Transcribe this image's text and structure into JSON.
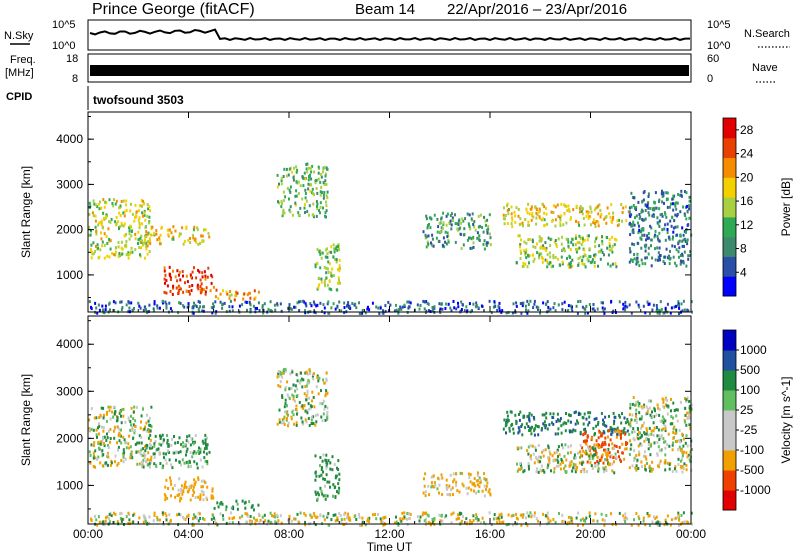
{
  "header": {
    "title": "Prince George (fitACF)",
    "beam": "Beam 14",
    "date_range": "22/Apr/2016 – 23/Apr/2016"
  },
  "strip_panels": {
    "sky": {
      "left_label": "N.Sky",
      "right_label": "N.Search",
      "tick_top": "10^5",
      "tick_bottom": "10^0"
    },
    "freq": {
      "left_label_top": "Freq.",
      "left_label_bottom": "[MHz]",
      "left_tick_top": "18",
      "left_tick_bottom": "8",
      "right_label": "Nave",
      "right_tick_top": "60",
      "right_tick_bottom": "0"
    },
    "cpid": {
      "label": "CPID",
      "value": "twofsound 3503"
    }
  },
  "colors": {
    "power_scale": [
      "#0000ff",
      "#2a4fa8",
      "#3b8a6e",
      "#2eaa55",
      "#a8d040",
      "#f5d000",
      "#f58c00",
      "#e84000",
      "#e00000"
    ],
    "velocity_scale": [
      "#e00000",
      "#f04000",
      "#f0a000",
      "#c8c8c8",
      "#c8c8c8",
      "#60c060",
      "#208a40",
      "#2050a0",
      "#0000c0"
    ]
  },
  "chart_data": [
    {
      "type": "heatmap",
      "name": "power",
      "title": "",
      "xlabel": "",
      "ylabel": "Slant Range [km]",
      "x_ticks": [
        "00:00",
        "04:00",
        "08:00",
        "12:00",
        "16:00",
        "20:00",
        "00:00"
      ],
      "x_range_hours": [
        0,
        24
      ],
      "y_ticks": [
        1000,
        2000,
        3000,
        4000
      ],
      "ylim": [
        180,
        4600
      ],
      "colorbar": {
        "label": "Power [dB]",
        "ticks": [
          4,
          8,
          12,
          16,
          20,
          24,
          28
        ],
        "range": [
          0,
          30
        ]
      },
      "echo_regions": [
        {
          "t": [
            0.0,
            2.5
          ],
          "range_km": [
            1400,
            2700
          ],
          "value": 16
        },
        {
          "t": [
            2.0,
            4.8
          ],
          "range_km": [
            1700,
            2100
          ],
          "value": 18
        },
        {
          "t": [
            3.0,
            5.0
          ],
          "range_km": [
            600,
            1200
          ],
          "value": 26
        },
        {
          "t": [
            5.0,
            6.8
          ],
          "range_km": [
            480,
            700
          ],
          "value": 20
        },
        {
          "t": [
            7.5,
            9.5
          ],
          "range_km": [
            2300,
            3500
          ],
          "value": 12
        },
        {
          "t": [
            9.0,
            10.0
          ],
          "range_km": [
            700,
            1700
          ],
          "value": 14
        },
        {
          "t": [
            13.3,
            16.0
          ],
          "range_km": [
            1600,
            2400
          ],
          "value": 10
        },
        {
          "t": [
            16.5,
            21.5
          ],
          "range_km": [
            2100,
            2600
          ],
          "value": 18
        },
        {
          "t": [
            17.0,
            21.0
          ],
          "range_km": [
            1200,
            1900
          ],
          "value": 14
        },
        {
          "t": [
            21.5,
            24.0
          ],
          "range_km": [
            1200,
            2900
          ],
          "value": 8
        },
        {
          "t": [
            0.0,
            24.0
          ],
          "range_km": [
            180,
            450
          ],
          "value": 6
        }
      ]
    },
    {
      "type": "heatmap",
      "name": "velocity",
      "title": "",
      "xlabel": "Time UT",
      "ylabel": "Slant Range [km]",
      "x_ticks": [
        "00:00",
        "04:00",
        "08:00",
        "12:00",
        "16:00",
        "20:00",
        "00:00"
      ],
      "x_range_hours": [
        0,
        24
      ],
      "y_ticks": [
        1000,
        2000,
        3000,
        4000
      ],
      "ylim": [
        180,
        4600
      ],
      "colorbar": {
        "label": "Velocity [m s^-1]",
        "ticks": [
          1000,
          500,
          100,
          25,
          -25,
          -100,
          -500,
          -1000
        ]
      },
      "echo_regions": [
        {
          "t": [
            0.0,
            2.5
          ],
          "range_km": [
            1400,
            2700
          ],
          "value": 0
        },
        {
          "t": [
            2.0,
            4.8
          ],
          "range_km": [
            1400,
            2100
          ],
          "value": 150
        },
        {
          "t": [
            3.0,
            5.0
          ],
          "range_km": [
            700,
            1200
          ],
          "value": -200
        },
        {
          "t": [
            5.0,
            6.8
          ],
          "range_km": [
            480,
            700
          ],
          "value": 300
        },
        {
          "t": [
            7.5,
            9.5
          ],
          "range_km": [
            2300,
            3500
          ],
          "value": 0
        },
        {
          "t": [
            9.0,
            10.0
          ],
          "range_km": [
            700,
            1700
          ],
          "value": 250
        },
        {
          "t": [
            13.3,
            16.0
          ],
          "range_km": [
            800,
            1300
          ],
          "value": -200
        },
        {
          "t": [
            16.5,
            21.5
          ],
          "range_km": [
            2100,
            2600
          ],
          "value": 400
        },
        {
          "t": [
            19.5,
            21.5
          ],
          "range_km": [
            1500,
            2200
          ],
          "value": -600
        },
        {
          "t": [
            17.0,
            21.0
          ],
          "range_km": [
            1300,
            1900
          ],
          "value": 0
        },
        {
          "t": [
            21.5,
            24.0
          ],
          "range_km": [
            1300,
            2900
          ],
          "value": 0
        },
        {
          "t": [
            0.0,
            24.0
          ],
          "range_km": [
            180,
            450
          ],
          "value": -60
        }
      ]
    }
  ]
}
